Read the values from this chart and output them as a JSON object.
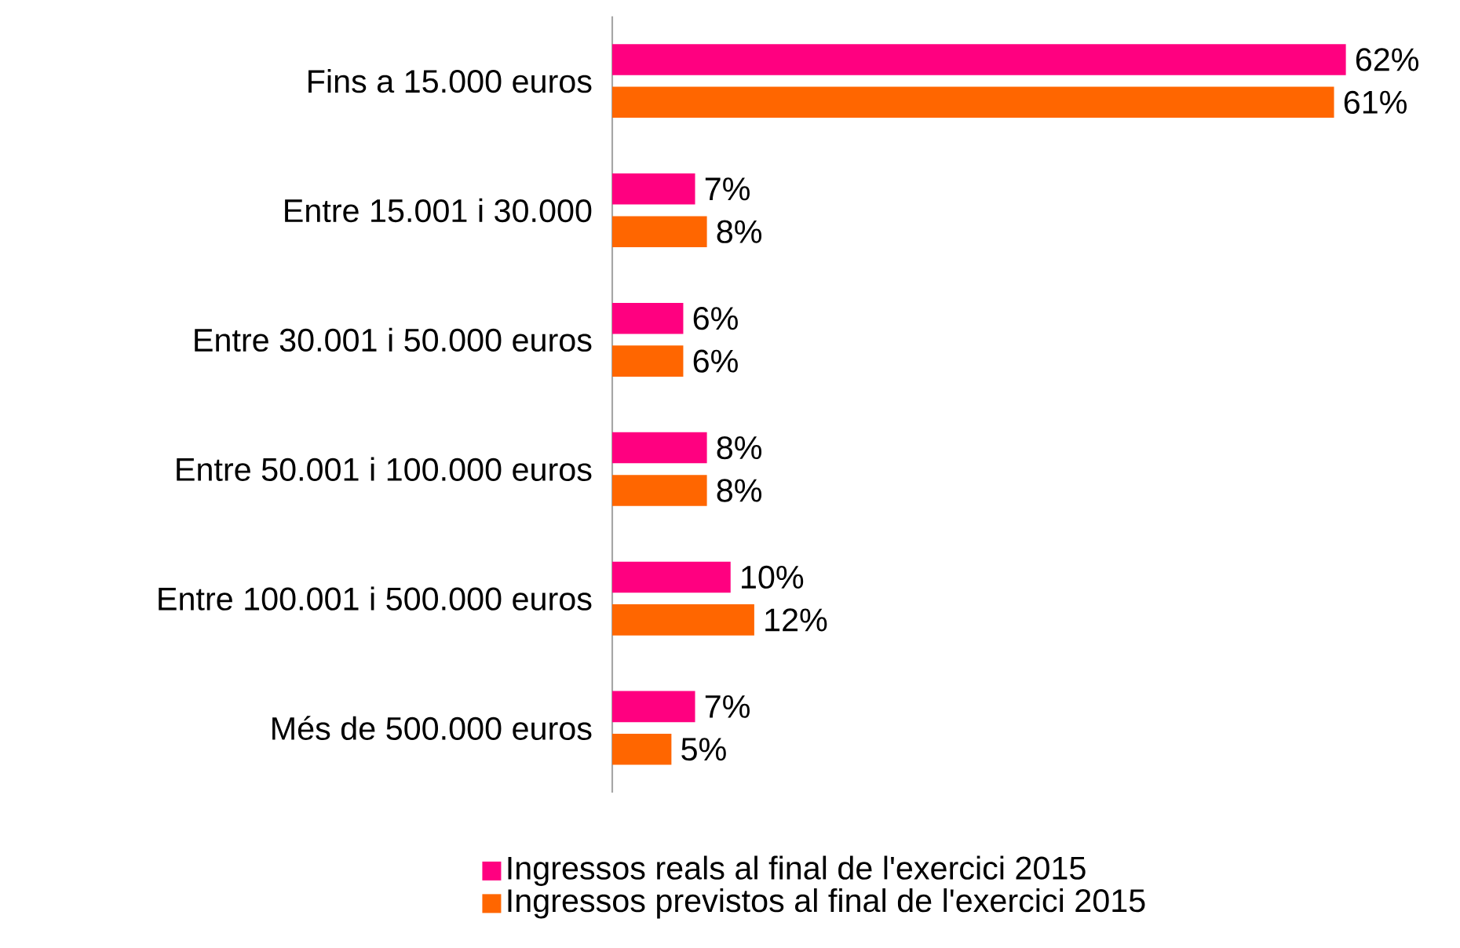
{
  "chart_data": {
    "type": "bar",
    "orientation": "horizontal",
    "categories": [
      "Fins a 15.000 euros",
      "Entre 15.001 i 30.000",
      "Entre 30.001 i 50.000 euros",
      "Entre 50.001 i 100.000 euros",
      "Entre 100.001 i 500.000 euros",
      "Més de 500.000 euros"
    ],
    "series": [
      {
        "name": "Ingressos reals al final de l'exercici 2015",
        "color": "#ff0080",
        "values": [
          62,
          7,
          6,
          8,
          10,
          7
        ],
        "value_labels": [
          "62%",
          "7%",
          "6%",
          "8%",
          "10%",
          "7%"
        ]
      },
      {
        "name": "Ingressos previstos al final de l'exercici 2015",
        "color": "#ff6600",
        "values": [
          61,
          8,
          6,
          8,
          12,
          5
        ],
        "value_labels": [
          "61%",
          "8%",
          "6%",
          "8%",
          "12%",
          "5%"
        ]
      }
    ],
    "legend": "bottom",
    "grid": false
  }
}
